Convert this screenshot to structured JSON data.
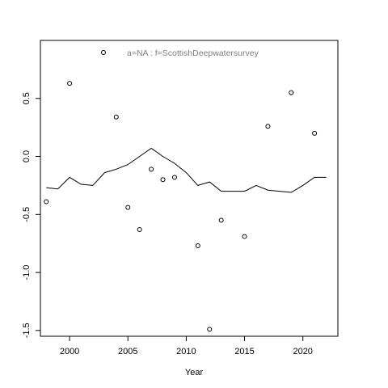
{
  "chart_data": {
    "type": "scatter",
    "xlabel": "Year",
    "ylabel": "",
    "xlim": [
      1997.5,
      2023.0
    ],
    "ylim": [
      -1.55,
      1.0
    ],
    "x_ticks": [
      2000,
      2005,
      2010,
      2015,
      2020
    ],
    "y_ticks": [
      -1.5,
      -1.0,
      -0.5,
      0.0,
      0.5
    ],
    "grid": false,
    "legend": {
      "text": "a=NA  :  f=ScottishDeepwatersurvey",
      "marker": "open-circle",
      "placement": "top-left"
    },
    "points": [
      {
        "x": 1998,
        "y": -0.39
      },
      {
        "x": 2000,
        "y": 0.63
      },
      {
        "x": 2004,
        "y": 0.34
      },
      {
        "x": 2005,
        "y": -0.44
      },
      {
        "x": 2006,
        "y": -0.63
      },
      {
        "x": 2007,
        "y": -0.11
      },
      {
        "x": 2008,
        "y": -0.2
      },
      {
        "x": 2009,
        "y": -0.18
      },
      {
        "x": 2011,
        "y": -0.77
      },
      {
        "x": 2012,
        "y": -1.49
      },
      {
        "x": 2013,
        "y": -0.55
      },
      {
        "x": 2015,
        "y": -0.69
      },
      {
        "x": 2017,
        "y": 0.26
      },
      {
        "x": 2019,
        "y": 0.55
      },
      {
        "x": 2021,
        "y": 0.2
      }
    ],
    "line": {
      "x": [
        1998,
        1999,
        2000,
        2001,
        2002,
        2003,
        2004,
        2005,
        2006,
        2007,
        2008,
        2009,
        2010,
        2011,
        2012,
        2013,
        2014,
        2015,
        2016,
        2017,
        2018,
        2019,
        2020,
        2021,
        2022
      ],
      "y": [
        -0.27,
        -0.28,
        -0.18,
        -0.24,
        -0.25,
        -0.14,
        -0.11,
        -0.07,
        0.0,
        0.07,
        0.0,
        -0.06,
        -0.14,
        -0.25,
        -0.22,
        -0.3,
        -0.3,
        -0.3,
        -0.25,
        -0.29,
        -0.3,
        -0.31,
        -0.25,
        -0.18,
        -0.18
      ]
    }
  }
}
